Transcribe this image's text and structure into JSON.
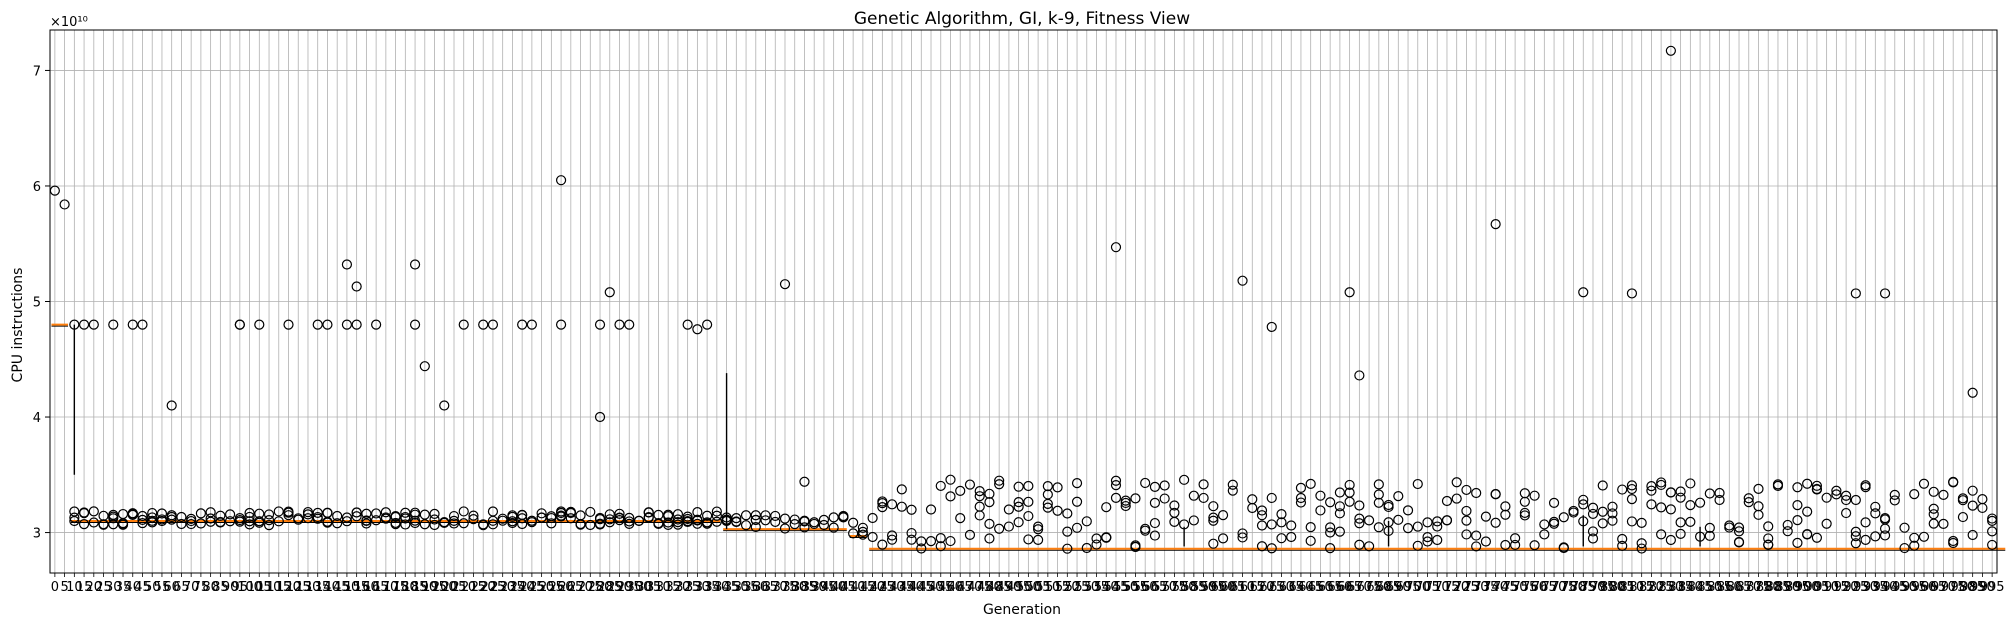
{
  "chart_data": {
    "type": "box",
    "title": "Genetic Algorithm, GI, k-9, Fitness View",
    "xlabel": "Generation",
    "ylabel": "CPU instructions",
    "y_multiplier_label": "×10¹⁰",
    "y_scale_factor": 10000000000,
    "ylim": [
      2.65,
      7.35
    ],
    "y_ticks": [
      3,
      4,
      5,
      6,
      7
    ],
    "x_first_tick": 0,
    "x_tick_step": 5,
    "x_last_tick": 1000,
    "n_generations": 200,
    "grid": true,
    "box_color": "#000000",
    "median_color": "#ff7f0e",
    "x_tick_labels_note": "tick labels overlap heavily in the original",
    "median_level_segments": [
      {
        "from": 0,
        "to": 1,
        "value": 4.8
      },
      {
        "from": 2,
        "to": 68,
        "value": 3.1
      },
      {
        "from": 69,
        "to": 81,
        "value": 3.03
      },
      {
        "from": 82,
        "to": 83,
        "value": 2.97
      },
      {
        "from": 84,
        "to": 200,
        "value": 2.86
      }
    ],
    "whisker_lines": [
      {
        "gen": 2,
        "low": 3.5,
        "high": 4.8
      },
      {
        "gen": 69,
        "low": 3.03,
        "high": 4.38
      },
      {
        "gen": 116,
        "low": 2.88,
        "high": 3.05
      },
      {
        "gen": 137,
        "low": 2.88,
        "high": 3.1
      },
      {
        "gen": 157,
        "low": 2.88,
        "high": 3.15
      },
      {
        "gen": 169,
        "low": 2.88,
        "high": 3.05
      }
    ],
    "notable_outliers": [
      {
        "gen": 0,
        "value": 5.96
      },
      {
        "gen": 1,
        "value": 5.84
      },
      {
        "gen": 2,
        "value": 4.8
      },
      {
        "gen": 3,
        "value": 4.8
      },
      {
        "gen": 12,
        "value": 4.1
      },
      {
        "gen": 19,
        "value": 4.8
      },
      {
        "gen": 30,
        "value": 5.32
      },
      {
        "gen": 31,
        "value": 5.13
      },
      {
        "gen": 37,
        "value": 5.32
      },
      {
        "gen": 38,
        "value": 4.44
      },
      {
        "gen": 40,
        "value": 4.1
      },
      {
        "gen": 52,
        "value": 6.05
      },
      {
        "gen": 56,
        "value": 4.0
      },
      {
        "gen": 57,
        "value": 5.08
      },
      {
        "gen": 66,
        "value": 4.76
      },
      {
        "gen": 75,
        "value": 5.15
      },
      {
        "gen": 77,
        "value": 3.44
      },
      {
        "gen": 109,
        "value": 5.47
      },
      {
        "gen": 122,
        "value": 5.18
      },
      {
        "gen": 125,
        "value": 4.78
      },
      {
        "gen": 133,
        "value": 5.08
      },
      {
        "gen": 134,
        "value": 4.36
      },
      {
        "gen": 140,
        "value": 3.42
      },
      {
        "gen": 148,
        "value": 5.67
      },
      {
        "gen": 157,
        "value": 5.08
      },
      {
        "gen": 162,
        "value": 5.07
      },
      {
        "gen": 166,
        "value": 7.17
      },
      {
        "gen": 185,
        "value": 5.07
      },
      {
        "gen": 188,
        "value": 5.07
      },
      {
        "gen": 197,
        "value": 4.21
      }
    ]
  }
}
